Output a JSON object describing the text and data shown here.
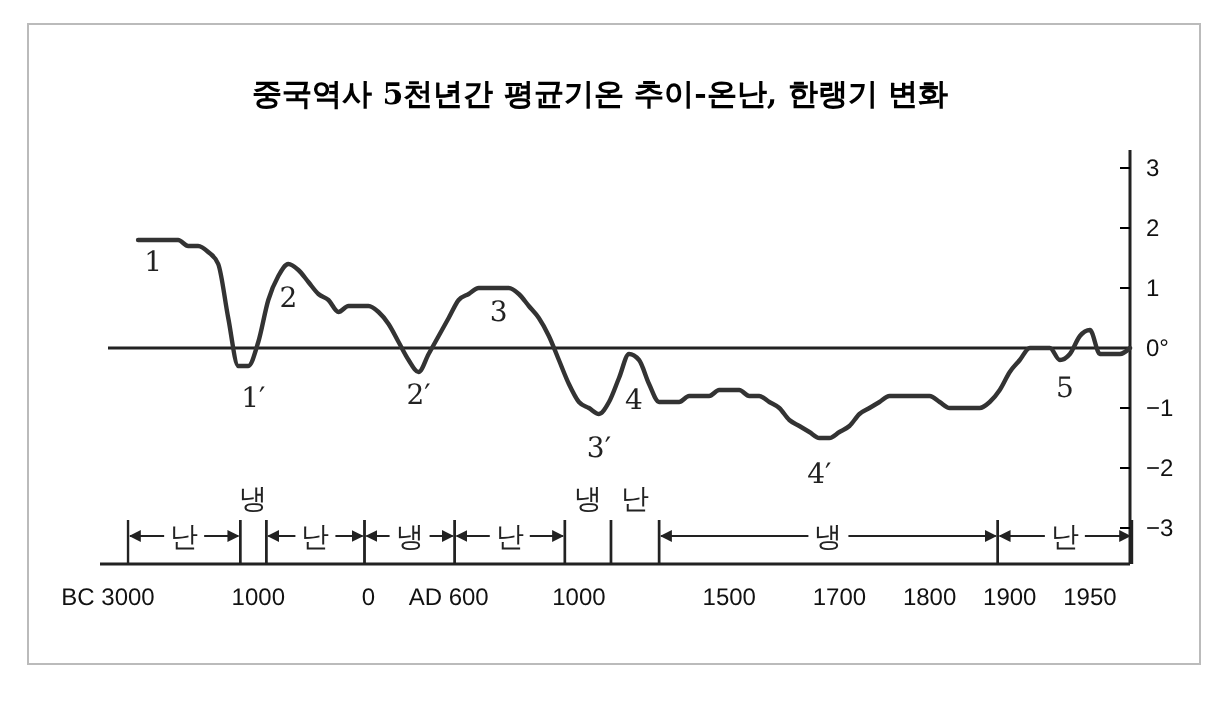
{
  "chart_data": {
    "type": "line",
    "title": "중국역사 5천년간 평균기온 추이-온난, 한랭기 변화",
    "categories": [
      "BC 3000",
      null,
      null,
      null,
      null,
      null,
      null,
      null,
      null,
      null,
      null,
      null,
      null,
      null,
      null,
      "1000",
      null,
      null,
      null,
      null,
      null,
      null,
      null,
      null,
      null,
      null,
      "0",
      null,
      null,
      null,
      null,
      null,
      null,
      null,
      "AD 600",
      null,
      null,
      null,
      null,
      null,
      null,
      null,
      null,
      null,
      null,
      null,
      null,
      "1000",
      null,
      null,
      null,
      null,
      null,
      null,
      null,
      null,
      null,
      null,
      null,
      null,
      null,
      null,
      "1500",
      null,
      null,
      null,
      null,
      null,
      null,
      null,
      null,
      null,
      null,
      "1700",
      null,
      null,
      null,
      null,
      null,
      null,
      null,
      null,
      "1800",
      null,
      null,
      null,
      null,
      null,
      null,
      null,
      "1900",
      null,
      null,
      null,
      null,
      null,
      null,
      null,
      "1950",
      null,
      null,
      null,
      null
    ],
    "series": [
      {
        "color": "#333333",
        "values": [
          null,
          null,
          null,
          1.8,
          1.8,
          1.8,
          1.8,
          1.8,
          1.7,
          1.7,
          1.6,
          1.4,
          0.5,
          -0.3,
          -0.3,
          0.1,
          0.8,
          1.2,
          1.4,
          1.3,
          1.1,
          0.9,
          0.8,
          0.6,
          0.7,
          0.7,
          0.7,
          0.6,
          0.4,
          0.1,
          -0.2,
          -0.4,
          -0.1,
          0.2,
          0.5,
          0.8,
          0.9,
          1.0,
          1.0,
          1.0,
          1.0,
          0.9,
          0.7,
          0.5,
          0.2,
          -0.2,
          -0.6,
          -0.9,
          -1.0,
          -1.1,
          -0.9,
          -0.5,
          -0.1,
          -0.2,
          -0.6,
          -0.9,
          -0.9,
          -0.9,
          -0.8,
          -0.8,
          -0.8,
          -0.7,
          -0.7,
          -0.7,
          -0.8,
          -0.8,
          -0.9,
          -1.0,
          -1.2,
          -1.3,
          -1.4,
          -1.5,
          -1.5,
          -1.4,
          -1.3,
          -1.1,
          -1.0,
          -0.9,
          -0.8,
          -0.8,
          -0.8,
          -0.8,
          -0.8,
          -0.9,
          -1.0,
          -1.0,
          -1.0,
          -1.0,
          -0.9,
          -0.7,
          -0.4,
          -0.2,
          0.0,
          0.0,
          0.0,
          -0.2,
          -0.1,
          0.2,
          0.3,
          -0.1,
          -0.1,
          -0.1,
          0.0
        ]
      }
    ],
    "ylim": [
      -3.6,
      3.3
    ],
    "yticks": [
      3,
      2,
      1,
      {
        "value": 0,
        "label": "0°"
      },
      -1,
      -2,
      -3
    ],
    "ref_lines": [
      {
        "axis": "y",
        "value": 0
      }
    ],
    "annotations": [
      "1",
      "2",
      "3",
      "4",
      "5",
      "1′",
      "2′",
      "3′",
      "4′",
      "난",
      "냉",
      "난",
      "냉",
      "난",
      "냉",
      "난",
      "냉",
      "난"
    ],
    "line_style": "solid"
  }
}
